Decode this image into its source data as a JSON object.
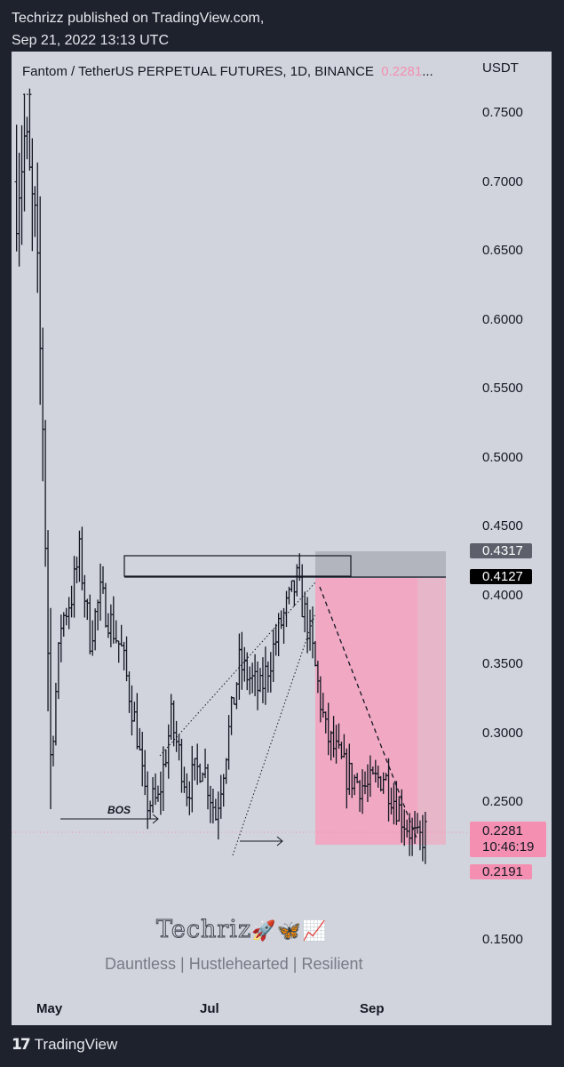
{
  "publisher": {
    "line1": "Techrizz published on TradingView.com,",
    "line2": "Sep 21, 2022 13:13 UTC"
  },
  "chart_data": {
    "type": "ohlc-bar",
    "title": "Fantom / TetherUS PERPETUAL FUTURES, 1D, BINANCE",
    "last_price": "0.2281",
    "title_suffix": "...",
    "overflow": "...",
    "currency": "USDT",
    "y_ticks": [
      "0.7500",
      "0.7000",
      "0.6500",
      "0.6000",
      "0.5500",
      "0.5000",
      "0.4500",
      "0.4000",
      "0.3500",
      "0.3000",
      "0.2500",
      "0.1500"
    ],
    "ylim": [
      0.13,
      0.77
    ],
    "x_ticks": [
      "May",
      "Jul",
      "Sep"
    ],
    "approx_closes": [
      [
        "2022-04-18",
        0.7
      ],
      [
        "2022-04-21",
        0.73
      ],
      [
        "2022-04-25",
        0.66
      ],
      [
        "2022-04-28",
        0.53
      ],
      [
        "2022-05-01",
        0.28
      ],
      [
        "2022-05-05",
        0.38
      ],
      [
        "2022-05-09",
        0.4
      ],
      [
        "2022-05-12",
        0.43
      ],
      [
        "2022-05-16",
        0.37
      ],
      [
        "2022-05-20",
        0.4
      ],
      [
        "2022-05-28",
        0.36
      ],
      [
        "2022-06-03",
        0.3
      ],
      [
        "2022-06-06",
        0.25
      ],
      [
        "2022-06-11",
        0.25
      ],
      [
        "2022-06-16",
        0.31
      ],
      [
        "2022-06-22",
        0.26
      ],
      [
        "2022-06-28",
        0.28
      ],
      [
        "2022-07-03",
        0.24
      ],
      [
        "2022-07-12",
        0.35
      ],
      [
        "2022-07-20",
        0.33
      ],
      [
        "2022-07-28",
        0.38
      ],
      [
        "2022-08-03",
        0.41
      ],
      [
        "2022-08-08",
        0.37
      ],
      [
        "2022-08-14",
        0.3
      ],
      [
        "2022-08-22",
        0.27
      ],
      [
        "2022-08-30",
        0.26
      ],
      [
        "2022-09-05",
        0.27
      ],
      [
        "2022-09-12",
        0.24
      ],
      [
        "2022-09-18",
        0.22
      ],
      [
        "2022-09-21",
        0.228
      ]
    ],
    "price_tags": [
      {
        "value": "0.4317",
        "color": "#5d606b"
      },
      {
        "value": "0.4127",
        "color": "#000000"
      },
      {
        "value": "0.2281",
        "sub": "10:46:19",
        "color": "#f48fb1"
      },
      {
        "value": "0.2191",
        "color": "#f48fb1"
      }
    ],
    "annotations": {
      "bos": "BOS"
    }
  },
  "watermark": {
    "name": "Techriz",
    "emoji": "🚀🦋📈",
    "tagline": "Dauntless | Hustlehearted | Resilient"
  },
  "footer": {
    "brand": "TradingView"
  }
}
